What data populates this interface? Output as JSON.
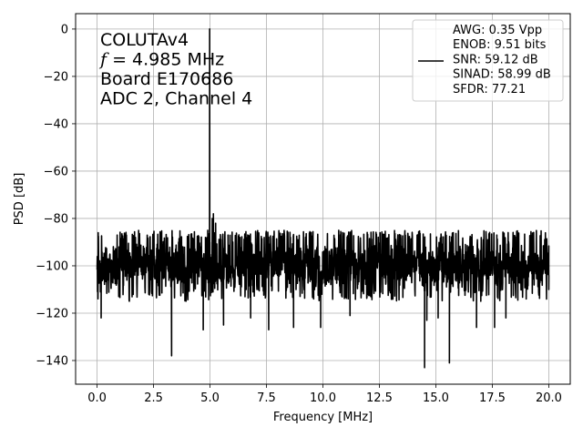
{
  "chart_data": {
    "type": "line",
    "xlabel": "Frequency [MHz]",
    "ylabel": "PSD [dB]",
    "xlim": [
      -0.95,
      20.95
    ],
    "ylim": [
      -150,
      6.5
    ],
    "x_ticks": [
      0.0,
      2.5,
      5.0,
      7.5,
      10.0,
      12.5,
      15.0,
      17.5,
      20.0
    ],
    "x_tick_labels": [
      "0.0",
      "2.5",
      "5.0",
      "7.5",
      "10.0",
      "12.5",
      "15.0",
      "17.5",
      "20.0"
    ],
    "y_ticks": [
      0,
      -20,
      -40,
      -60,
      -80,
      -100,
      -120,
      -140
    ],
    "y_tick_labels": [
      "0",
      "−20",
      "−40",
      "−60",
      "−80",
      "−100",
      "−120",
      "−140"
    ],
    "grid": true,
    "legend_position": "top-right",
    "annotation_lines": [
      {
        "text": "COLUTAv4"
      },
      {
        "italic": "f",
        "text": " = 4.985 MHz"
      },
      {
        "text": "Board E170686"
      },
      {
        "text": "ADC 2, Channel 4"
      }
    ],
    "series": [
      {
        "name": "AWG: 0.35 Vpp\nENOB: 9.51 bits\nSNR: 59.12 dB\nSINAD: 58.99 dB\nSFDR: 77.21",
        "color": "#000000",
        "noise_floor_mean": -100,
        "noise_upper": -88,
        "noise_lower": -115,
        "x_start": 0.0,
        "x_end": 20.0,
        "peak": {
          "x": 4.985,
          "y": 0
        },
        "shoulder": [
          {
            "x": 4.6,
            "y": -92
          },
          {
            "x": 4.8,
            "y": -88
          },
          {
            "x": 4.9,
            "y": -85
          },
          {
            "x": 5.1,
            "y": -80
          },
          {
            "x": 5.15,
            "y": -78
          },
          {
            "x": 5.25,
            "y": -82
          },
          {
            "x": 5.4,
            "y": -90
          }
        ],
        "dips": [
          {
            "x": 0.15,
            "y": -111
          },
          {
            "x": 0.18,
            "y": -122
          },
          {
            "x": 3.3,
            "y": -138
          },
          {
            "x": 4.7,
            "y": -127
          },
          {
            "x": 5.6,
            "y": -125
          },
          {
            "x": 6.8,
            "y": -122
          },
          {
            "x": 7.6,
            "y": -127
          },
          {
            "x": 8.7,
            "y": -126
          },
          {
            "x": 9.9,
            "y": -126
          },
          {
            "x": 11.2,
            "y": -121
          },
          {
            "x": 14.5,
            "y": -143
          },
          {
            "x": 14.6,
            "y": -123
          },
          {
            "x": 15.1,
            "y": -122
          },
          {
            "x": 15.6,
            "y": -141
          },
          {
            "x": 16.8,
            "y": -126
          },
          {
            "x": 17.6,
            "y": -126
          },
          {
            "x": 18.1,
            "y": -122
          },
          {
            "x": 19.0,
            "y": -114
          },
          {
            "x": 20.0,
            "y": -110
          }
        ],
        "spikes": [
          {
            "x": 0.05,
            "y": -86
          },
          {
            "x": 1.7,
            "y": -88
          },
          {
            "x": 5.8,
            "y": -87
          },
          {
            "x": 13.4,
            "y": -87
          },
          {
            "x": 17.7,
            "y": -87
          }
        ]
      }
    ]
  }
}
